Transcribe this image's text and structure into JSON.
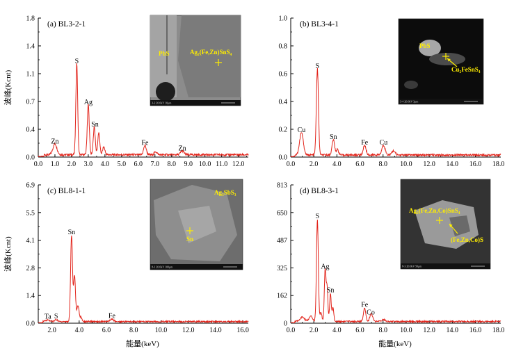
{
  "colors": {
    "spectrum": "#e2231a",
    "axis": "#000000",
    "inset_label": "#ffee00"
  },
  "y_axis_label": "波峰(Kcnt)",
  "x_axis_label": "能量(keV)",
  "chart_data": [
    {
      "type": "line",
      "title": "(a) BL3-2-1",
      "xlim": [
        0,
        12.6
      ],
      "ylim": [
        0,
        1.8
      ],
      "x_ticks": [
        "0.0",
        "1.0",
        "2.0",
        "3.0",
        "4.0",
        "5.0",
        "6.0",
        "7.0",
        "8.0",
        "9.0",
        "10.0",
        "11.0",
        "12.0"
      ],
      "y_ticks": [
        "0.0",
        "0.4",
        "0.7",
        "1.1",
        "1.4",
        "1.8"
      ],
      "ylabel": "波峰(Kcnt)",
      "baseline": 0.03,
      "peaks": [
        [
          1.0,
          0.14,
          0.12
        ],
        [
          2.31,
          1.18,
          0.055
        ],
        [
          3.0,
          0.65,
          0.06
        ],
        [
          3.36,
          0.36,
          0.06
        ],
        [
          3.63,
          0.29,
          0.06
        ],
        [
          3.93,
          0.1,
          0.07
        ],
        [
          6.4,
          0.12,
          0.08
        ],
        [
          7.05,
          0.04,
          0.08
        ],
        [
          8.64,
          0.05,
          0.1
        ]
      ],
      "labels": [
        {
          "text": "Zn",
          "x": 1.0,
          "y": 0.14
        },
        {
          "text": "S",
          "x": 2.31,
          "y": 1.18
        },
        {
          "text": "Ag",
          "x": 3.0,
          "y": 0.65
        },
        {
          "text": "Sn",
          "x": 3.4,
          "y": 0.36
        },
        {
          "text": "Fe",
          "x": 6.4,
          "y": 0.12
        },
        {
          "text": "Zn",
          "x": 8.64,
          "y": 0.05
        }
      ],
      "inset": {
        "labels": [
          "PbS",
          "Ag₂(Fe,Zn)SnS₄"
        ],
        "footer": "3-2  20.0kV  10μm"
      }
    },
    {
      "type": "line",
      "title": "(b) BL3-4-1",
      "xlim": [
        0,
        18.2
      ],
      "ylim": [
        0,
        1.0
      ],
      "x_ticks": [
        "0.0",
        "2.0",
        "4.0",
        "6.0",
        "8.0",
        "10.0",
        "12.0",
        "14.0",
        "16.0",
        "18.0"
      ],
      "y_ticks": [
        "0.0",
        "0.2",
        "0.4",
        "0.6",
        "0.8",
        "1.0"
      ],
      "ylabel": "",
      "baseline": 0.015,
      "peaks": [
        [
          0.93,
          0.16,
          0.16
        ],
        [
          2.31,
          0.62,
          0.09
        ],
        [
          3.69,
          0.11,
          0.11
        ],
        [
          4.05,
          0.04,
          0.1
        ],
        [
          6.4,
          0.07,
          0.12
        ],
        [
          8.04,
          0.07,
          0.14
        ],
        [
          8.9,
          0.03,
          0.14
        ]
      ],
      "labels": [
        {
          "text": "Cu",
          "x": 0.93,
          "y": 0.16
        },
        {
          "text": "S",
          "x": 2.31,
          "y": 0.62
        },
        {
          "text": "Sn",
          "x": 3.69,
          "y": 0.11
        },
        {
          "text": "Fe",
          "x": 6.4,
          "y": 0.07
        },
        {
          "text": "Cu",
          "x": 8.04,
          "y": 0.07
        }
      ],
      "inset": {
        "labels": [
          "PbS",
          "Cu₂FeSnS₄"
        ],
        "footer": "3-4  20.0kV  3μm"
      }
    },
    {
      "type": "line",
      "title": "(c) BL8-1-1",
      "xlim": [
        1.0,
        16.4
      ],
      "ylim": [
        0,
        6.9
      ],
      "x_ticks": [
        "2.0",
        "4.0",
        "6.0",
        "8.0",
        "10.0",
        "12.0",
        "14.0",
        "16.0"
      ],
      "y_ticks": [
        "0.0",
        "1.4",
        "2.8",
        "4.1",
        "5.5",
        "6.9"
      ],
      "ylabel": "波峰(Kcnt)",
      "baseline": 0.08,
      "peaks": [
        [
          1.7,
          0.08,
          0.15
        ],
        [
          2.31,
          0.1,
          0.1
        ],
        [
          3.44,
          4.3,
          0.07
        ],
        [
          3.66,
          2.3,
          0.07
        ],
        [
          3.91,
          0.8,
          0.08
        ],
        [
          4.13,
          0.2,
          0.08
        ],
        [
          6.4,
          0.12,
          0.12
        ]
      ],
      "labels": [
        {
          "text": "Ta",
          "x": 1.7,
          "y": 0.08
        },
        {
          "text": "S",
          "x": 2.31,
          "y": 0.1
        },
        {
          "text": "Sn",
          "x": 3.44,
          "y": 4.3
        },
        {
          "text": "Fe",
          "x": 6.4,
          "y": 0.12
        }
      ],
      "inset": {
        "labels": [
          "Ag₃SbS₃",
          "Sn"
        ],
        "footer": "8-1  20.0kV  100μm"
      }
    },
    {
      "type": "line",
      "title": "(d) BL8-3-1",
      "xlim": [
        0,
        18.2
      ],
      "ylim": [
        0,
        813
      ],
      "x_ticks": [
        "0.0",
        "2.0",
        "4.0",
        "6.0",
        "8.0",
        "10.0",
        "12.0",
        "14.0",
        "16.0",
        "18.0"
      ],
      "y_ticks": [
        "0",
        "162",
        "325",
        "487",
        "650",
        "813"
      ],
      "ylabel": "",
      "baseline": 10,
      "peaks": [
        [
          1.0,
          25,
          0.2
        ],
        [
          1.74,
          30,
          0.15
        ],
        [
          2.31,
          600,
          0.08
        ],
        [
          2.62,
          55,
          0.08
        ],
        [
          2.98,
          305,
          0.07
        ],
        [
          3.15,
          200,
          0.07
        ],
        [
          3.44,
          165,
          0.07
        ],
        [
          3.66,
          80,
          0.07
        ],
        [
          6.4,
          80,
          0.1
        ],
        [
          6.93,
          35,
          0.1
        ],
        [
          7.06,
          20,
          0.1
        ],
        [
          8.04,
          12,
          0.15
        ]
      ],
      "labels": [
        {
          "text": "S",
          "x": 2.31,
          "y": 600
        },
        {
          "text": "Ag",
          "x": 2.98,
          "y": 305
        },
        {
          "text": "Sn",
          "x": 3.44,
          "y": 165
        },
        {
          "text": "Fe",
          "x": 6.4,
          "y": 80
        },
        {
          "text": "Co",
          "x": 6.93,
          "y": 35
        }
      ],
      "inset": {
        "labels": [
          "Ag₂(Fe,Zn,Co)SnS₄",
          "(Fe,Zn,Co)S"
        ],
        "footer": "8-3  20.0kV  50μm"
      }
    }
  ]
}
